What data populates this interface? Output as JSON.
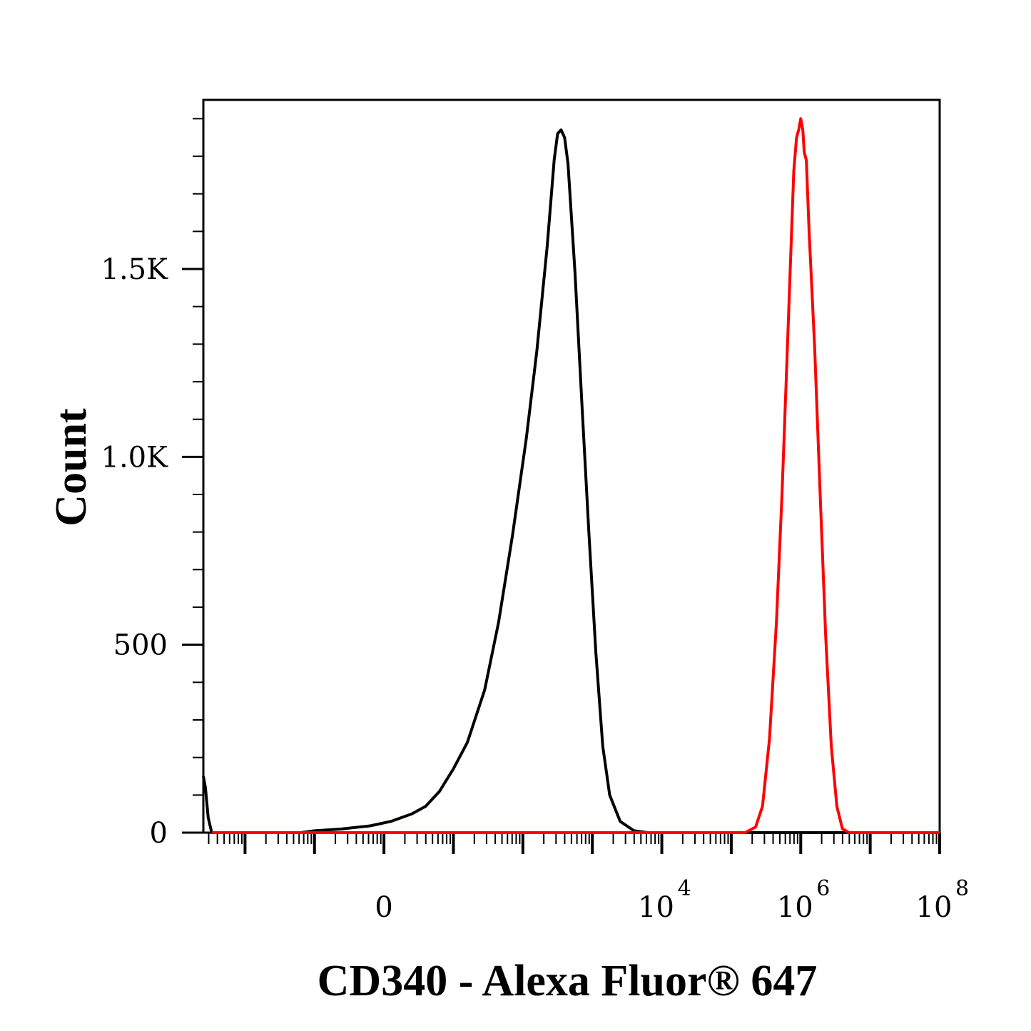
{
  "chart_data": {
    "type": "line",
    "title": "",
    "xlabel": "CD340 - Alexa Fluor® 647",
    "ylabel": "Count",
    "x_scale": "biexponential",
    "xlim_decades": [
      -2.6,
      8.0
    ],
    "ylim": [
      0,
      1950
    ],
    "y_ticks": [
      {
        "value": 0,
        "label": "0"
      },
      {
        "value": 500,
        "label": "500"
      },
      {
        "value": 1000,
        "label": "1.0K"
      },
      {
        "value": 1500,
        "label": "1.5K"
      }
    ],
    "x_ticks": [
      {
        "decade": 0,
        "base": "0",
        "exp": ""
      },
      {
        "decade": 4,
        "base": "10",
        "exp": "4"
      },
      {
        "decade": 6,
        "base": "10",
        "exp": "6"
      },
      {
        "decade": 8,
        "base": "10",
        "exp": "8"
      }
    ],
    "grid": false,
    "legend": "none",
    "series": [
      {
        "color": "#000000",
        "points": [
          [
            -2.6,
            150
          ],
          [
            -2.57,
            120
          ],
          [
            -2.53,
            40
          ],
          [
            -2.48,
            0
          ],
          [
            -1.2,
            0
          ],
          [
            -1.0,
            5
          ],
          [
            -0.6,
            10
          ],
          [
            -0.2,
            18
          ],
          [
            0.1,
            30
          ],
          [
            0.4,
            50
          ],
          [
            0.6,
            70
          ],
          [
            0.8,
            110
          ],
          [
            1.0,
            170
          ],
          [
            1.2,
            240
          ],
          [
            1.45,
            380
          ],
          [
            1.65,
            560
          ],
          [
            1.85,
            790
          ],
          [
            2.05,
            1050
          ],
          [
            2.2,
            1280
          ],
          [
            2.35,
            1560
          ],
          [
            2.45,
            1790
          ],
          [
            2.5,
            1860
          ],
          [
            2.55,
            1870
          ],
          [
            2.6,
            1850
          ],
          [
            2.65,
            1780
          ],
          [
            2.75,
            1490
          ],
          [
            2.85,
            1140
          ],
          [
            2.95,
            800
          ],
          [
            3.05,
            480
          ],
          [
            3.15,
            230
          ],
          [
            3.25,
            100
          ],
          [
            3.4,
            30
          ],
          [
            3.6,
            5
          ],
          [
            3.8,
            0
          ],
          [
            8.0,
            0
          ]
        ]
      },
      {
        "color": "#ff0000",
        "points": [
          [
            -2.48,
            0
          ],
          [
            5.2,
            0
          ],
          [
            5.35,
            15
          ],
          [
            5.45,
            70
          ],
          [
            5.55,
            250
          ],
          [
            5.65,
            560
          ],
          [
            5.73,
            900
          ],
          [
            5.8,
            1250
          ],
          [
            5.86,
            1560
          ],
          [
            5.9,
            1760
          ],
          [
            5.94,
            1850
          ],
          [
            5.97,
            1870
          ],
          [
            6.0,
            1900
          ],
          [
            6.03,
            1870
          ],
          [
            6.05,
            1810
          ],
          [
            6.08,
            1790
          ],
          [
            6.12,
            1600
          ],
          [
            6.2,
            1290
          ],
          [
            6.28,
            900
          ],
          [
            6.36,
            520
          ],
          [
            6.44,
            230
          ],
          [
            6.52,
            70
          ],
          [
            6.6,
            10
          ],
          [
            6.7,
            0
          ],
          [
            8.0,
            0
          ]
        ]
      }
    ]
  }
}
